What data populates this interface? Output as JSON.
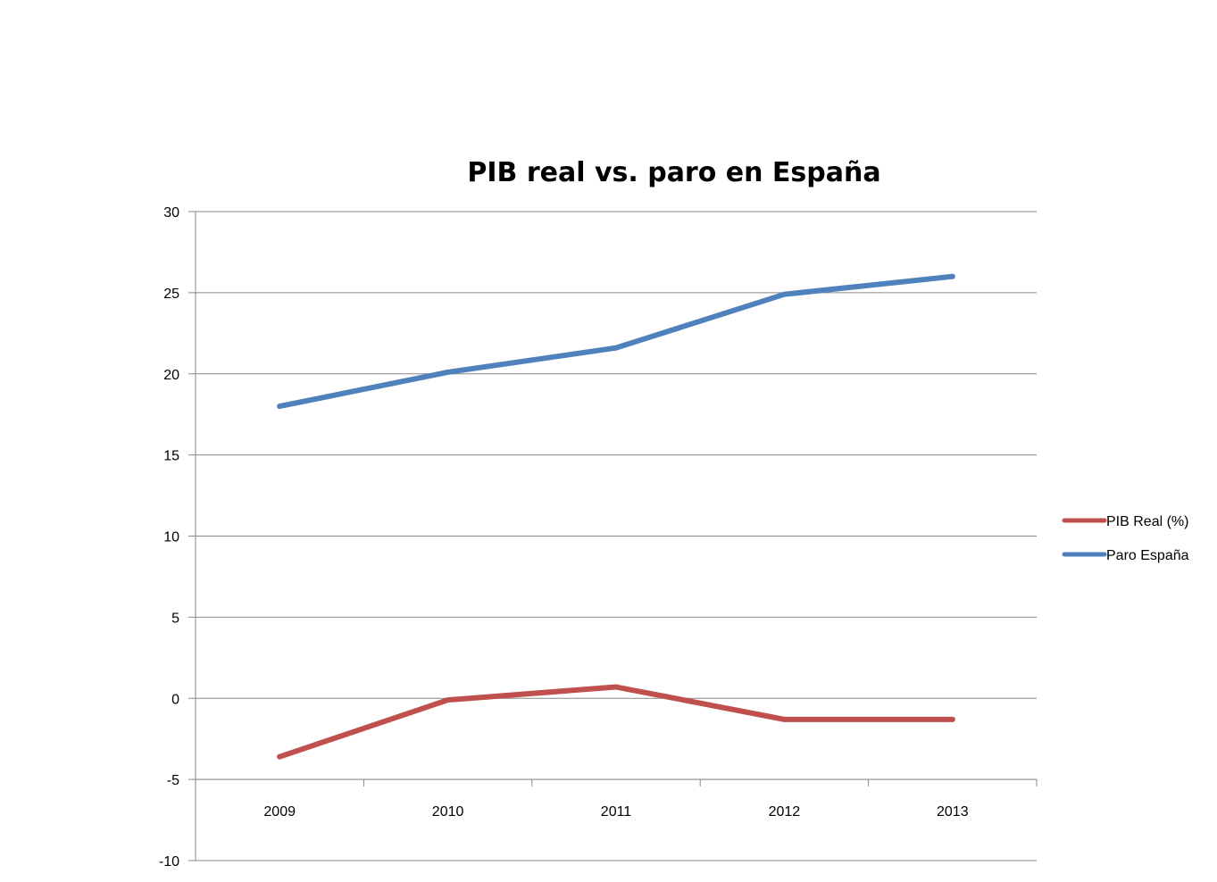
{
  "chart_data": {
    "type": "line",
    "title": "PIB real vs. paro en España",
    "xlabel": "",
    "ylabel": "",
    "categories": [
      "2009",
      "2010",
      "2011",
      "2012",
      "2013"
    ],
    "y_ticks": [
      "30",
      "25",
      "20",
      "15",
      "10",
      "5",
      "0",
      "-5",
      "-10"
    ],
    "ylim": [
      -10,
      30
    ],
    "grid": true,
    "legend_position": "right",
    "series": [
      {
        "name": "PIB Real (%)",
        "color": "#c0504d",
        "values": [
          -3.6,
          -0.1,
          0.7,
          -1.3,
          -1.3
        ]
      },
      {
        "name": "Paro España",
        "color": "#4f81bd",
        "values": [
          18.0,
          20.1,
          21.6,
          24.9,
          26.0
        ]
      }
    ]
  }
}
